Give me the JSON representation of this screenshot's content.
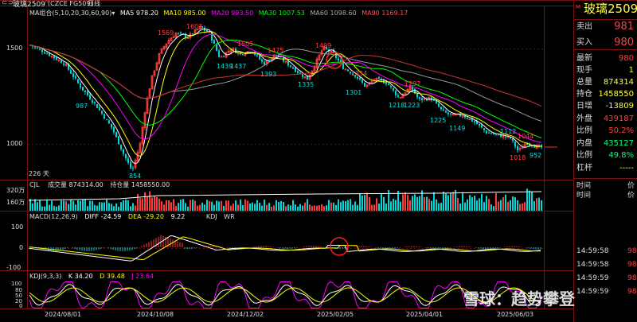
{
  "header": {
    "title": "玻璃2509",
    "title_suffix": "M",
    "code": "(CZCE FG509)",
    "period": "日线"
  },
  "ma_legend": {
    "group": "MA组合(5,10,20,30,60,90)",
    "ma5": "MA5 978.20",
    "ma10": "MA10 985.00",
    "ma20": "MA20 993.50",
    "ma30": "MA30 1007.53",
    "ma60": "MA60 1098.60",
    "ma90": "MA90 1169.17"
  },
  "price_axis": {
    "p1500": "1500",
    "p1000": "1000"
  },
  "price_annotations": [
    "1569",
    "1603",
    "1505",
    "1475",
    "1499",
    "1439",
    "1437",
    "1393",
    "1335",
    "1354",
    "1301",
    "1297",
    "1218",
    "1223",
    "1225",
    "1149",
    "1112",
    "1044",
    "1018",
    "952",
    "987",
    "854"
  ],
  "bars_counter": "226 天",
  "volume_legend": {
    "name": "CJL",
    "volume": "成交量 874314.00",
    "oi": "持仓量 1458550.00"
  },
  "volume_axis": {
    "a": "320万",
    "b": "160万"
  },
  "macd_legend": {
    "name": "MACD(12,26,9)",
    "diff": "DIFF -24.59",
    "dea": "DEA -29.20",
    "macd": "9.22",
    "kdj": "KDJ",
    "wr": "WR"
  },
  "macd_axis": {
    "a": "100",
    "b": "0",
    "c": "-100"
  },
  "kdj_legend": {
    "name": "KDJ(9,3,3)",
    "k": "K 34.20",
    "d": "D 39.48",
    "j": "J 23.64"
  },
  "kdj_axis": {
    "a": "100",
    "b": "80",
    "c": "50",
    "d": "20",
    "e": "0"
  },
  "dates": [
    "2024/08/01",
    "2024/10/08",
    "2024/12/02",
    "2025/02/05",
    "2025/04/01",
    "2025/06/03"
  ],
  "quote": {
    "title": "玻璃2509",
    "title_prefix": "M",
    "rows": [
      {
        "label": "卖出",
        "value": "981"
      },
      {
        "label": "买入",
        "value": "980"
      },
      {
        "label": "最新",
        "value": "980"
      },
      {
        "label": "现手",
        "value": "1"
      },
      {
        "label": "总量",
        "value": "874314"
      },
      {
        "label": "持仓",
        "value": "1458550"
      },
      {
        "label": "日增",
        "value": "-13809"
      },
      {
        "label": "外盘",
        "value": "439187"
      },
      {
        "label": "比例",
        "value": "50.2%"
      },
      {
        "label": "内盘",
        "value": "435127"
      },
      {
        "label": "比例",
        "value": "49.8%"
      },
      {
        "label": "杠杆",
        "value": "-----"
      }
    ]
  },
  "ticks": {
    "header_time": "时间",
    "header_price": "价",
    "rows": [
      {
        "time": "时间",
        "price": "价"
      },
      {
        "time": "时间",
        "price": "价"
      },
      {
        "time": "14:59:58",
        "price": "98"
      },
      {
        "time": "14:59:58",
        "price": "98"
      },
      {
        "time": "14:59:59",
        "price": "98"
      },
      {
        "time": "14:59:59",
        "price": "98"
      }
    ]
  },
  "watermark": "雪球：趋势攀登",
  "colors": {
    "up": "#ff3c3c",
    "down": "#00d7d7",
    "ma5": "#ffffff",
    "ma10": "#ffff00",
    "ma20": "#ff00ff",
    "ma30": "#00ff00",
    "ma60": "#999999",
    "ma90": "#cc3333",
    "accent": "#ff4040"
  }
}
